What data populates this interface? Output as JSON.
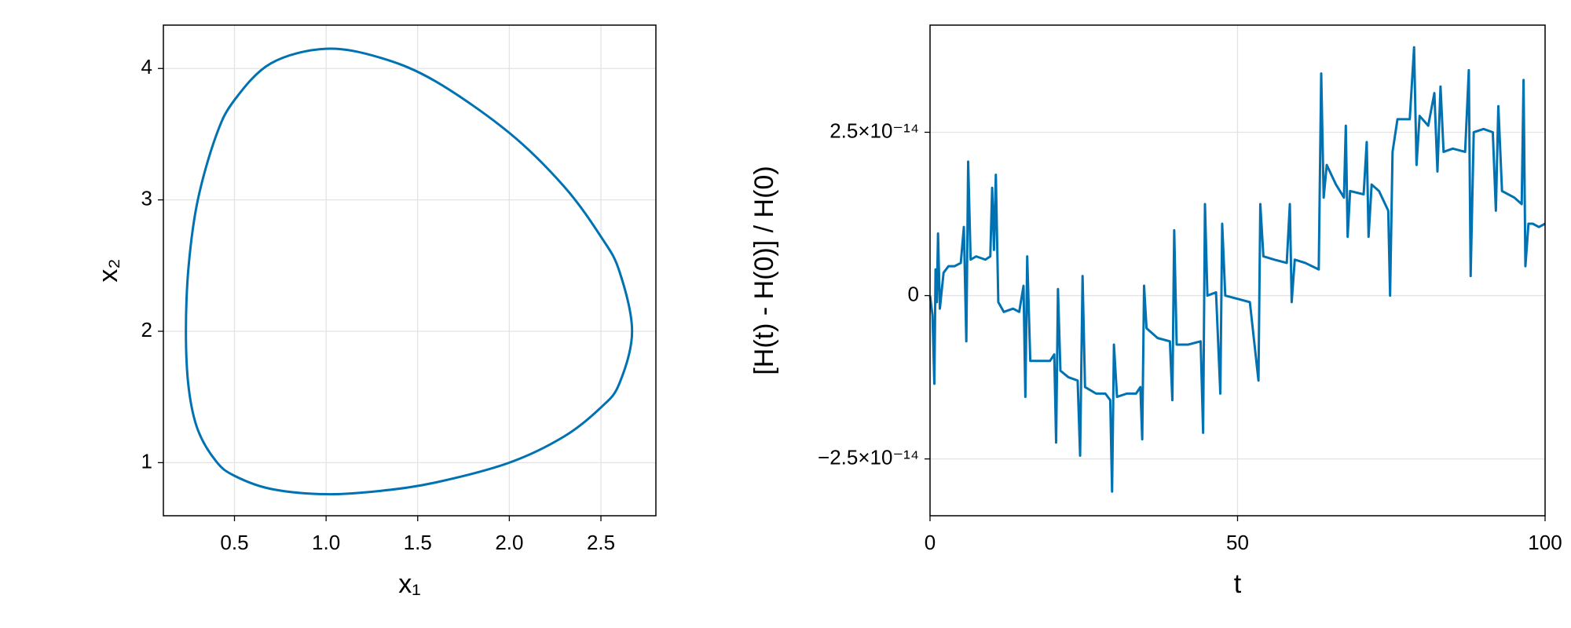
{
  "chart_data": [
    {
      "type": "line",
      "xlabel": "x₁",
      "ylabel": "x₂",
      "color": "#0072b2",
      "grid": true,
      "x": [
        0.235,
        0.25,
        0.3,
        0.4,
        0.5,
        0.7,
        1.0,
        1.3,
        1.6,
        2.0,
        2.3,
        2.5,
        2.6,
        2.67,
        2.6,
        2.5,
        2.3,
        2.0,
        1.6,
        1.3,
        1.0,
        0.7,
        0.5,
        0.4,
        0.3,
        0.25,
        0.235
      ],
      "values": [
        2.0,
        1.57,
        1.25,
        1.01,
        0.9,
        0.8,
        0.76,
        0.786,
        0.85,
        1.0,
        1.2,
        1.42,
        1.6,
        2.0,
        2.46,
        2.72,
        3.1,
        3.51,
        3.9,
        4.08,
        4.15,
        4.04,
        3.76,
        3.49,
        3.0,
        2.5,
        2.0
      ],
      "xlim": [
        0.112,
        2.8
      ],
      "xticks": [
        0.5,
        {
          "value": 1,
          "label": "1.0"
        },
        1.5,
        {
          "value": 2,
          "label": "2.0"
        },
        2.5
      ],
      "ylim": [
        0.596,
        4.33
      ],
      "yticks": [
        1,
        2,
        3,
        4
      ]
    },
    {
      "type": "line",
      "xlabel": "t",
      "ylabel": "[H(t) - H(0)] / H(0)",
      "color": "#0072b2",
      "grid": true,
      "x": [
        0,
        0.4,
        0.7,
        0.9,
        1.1,
        1.3,
        1.6,
        2.2,
        3,
        4,
        5,
        5.5,
        5.9,
        6.2,
        6.6,
        7.5,
        9,
        9.8,
        10.1,
        10.4,
        10.7,
        11.1,
        12,
        13.5,
        14.5,
        15.2,
        15.5,
        15.8,
        16.3,
        18,
        19.5,
        20.2,
        20.5,
        20.8,
        21.2,
        22.5,
        24,
        24.4,
        24.8,
        25.2,
        27,
        28.5,
        29.3,
        29.6,
        29.9,
        30.4,
        32,
        33.5,
        34.2,
        34.5,
        34.8,
        35.2,
        37,
        39,
        39.4,
        39.7,
        40.1,
        42,
        44,
        44.4,
        44.7,
        45.1,
        46.5,
        47.2,
        47.5,
        48,
        50,
        52,
        53.4,
        53.7,
        54.2,
        56,
        58,
        58.5,
        58.8,
        59.3,
        61,
        63.2,
        63.6,
        64,
        64.5,
        66,
        67.3,
        67.6,
        67.9,
        68.3,
        70.5,
        71,
        71.3,
        71.8,
        73,
        74.5,
        74.8,
        75.2,
        76,
        78,
        78.7,
        79.1,
        79.6,
        81,
        82,
        82.5,
        83,
        83.5,
        85,
        87,
        87.6,
        87.9,
        88.4,
        90,
        91.5,
        92,
        92.4,
        93,
        95,
        96.2,
        96.5,
        96.8,
        97.3,
        98,
        99,
        100
      ],
      "values": [
        0,
        -3e-15,
        -1.35e-14,
        4e-15,
        -1e-15,
        9.5e-15,
        -2e-15,
        3.5e-15,
        4.5e-15,
        4.5e-15,
        5e-15,
        1.05e-14,
        -7e-15,
        2.05e-14,
        5.5e-15,
        6e-15,
        5.5e-15,
        6e-15,
        1.65e-14,
        7e-15,
        1.85e-14,
        -1e-15,
        -2.5e-15,
        -2e-15,
        -2.5e-15,
        1.5e-15,
        -1.55e-14,
        6e-15,
        -1e-14,
        -1e-14,
        -1e-14,
        -9e-15,
        -2.25e-14,
        1e-15,
        -1.15e-14,
        -1.25e-14,
        -1.3e-14,
        -2.45e-14,
        3e-15,
        -1.4e-14,
        -1.5e-14,
        -1.5e-14,
        -1.6e-14,
        -3e-14,
        -7.5e-15,
        -1.55e-14,
        -1.5e-14,
        -1.5e-14,
        -1.4e-14,
        -2.2e-14,
        1.5e-15,
        -5e-15,
        -6.5e-15,
        -7e-15,
        -1.6e-14,
        1e-14,
        -7.5e-15,
        -7.5e-15,
        -7e-15,
        -2.1e-14,
        1.4e-14,
        0,
        5e-16,
        -1.5e-14,
        1.1e-14,
        0,
        -5e-16,
        -1e-15,
        -1.3e-14,
        1.4e-14,
        6e-15,
        5.5e-15,
        5e-15,
        1.4e-14,
        -1e-15,
        5.5e-15,
        5e-15,
        4e-15,
        3.4e-14,
        1.5e-14,
        2e-14,
        1.7e-14,
        1.5e-14,
        2.6e-14,
        9e-15,
        1.6e-14,
        1.55e-14,
        2.35e-14,
        9e-15,
        1.7e-14,
        1.6e-14,
        1.3e-14,
        0,
        2.2e-14,
        2.7e-14,
        2.7e-14,
        3.8e-14,
        2e-14,
        2.75e-14,
        2.6e-14,
        3.1e-14,
        1.9e-14,
        3.2e-14,
        2.2e-14,
        2.25e-14,
        2.2e-14,
        3.45e-14,
        3e-15,
        2.5e-14,
        2.55e-14,
        2.5e-14,
        1.3e-14,
        2.9e-14,
        1.6e-14,
        1.5e-14,
        1.4e-14,
        3.3e-14,
        4.5e-15,
        1.1e-14,
        1.1e-14,
        1.05e-14,
        1.1e-14
      ],
      "xlim": [
        0,
        100
      ],
      "xticks": [
        0,
        50,
        100
      ],
      "ylim": [
        -3.37e-14,
        4.14e-14
      ],
      "yticks": [
        {
          "value": -2.5e-14,
          "label": "−2.5×10⁻¹⁴"
        },
        0,
        {
          "value": 2.5e-14,
          "label": "2.5×10⁻¹⁴"
        }
      ]
    }
  ]
}
